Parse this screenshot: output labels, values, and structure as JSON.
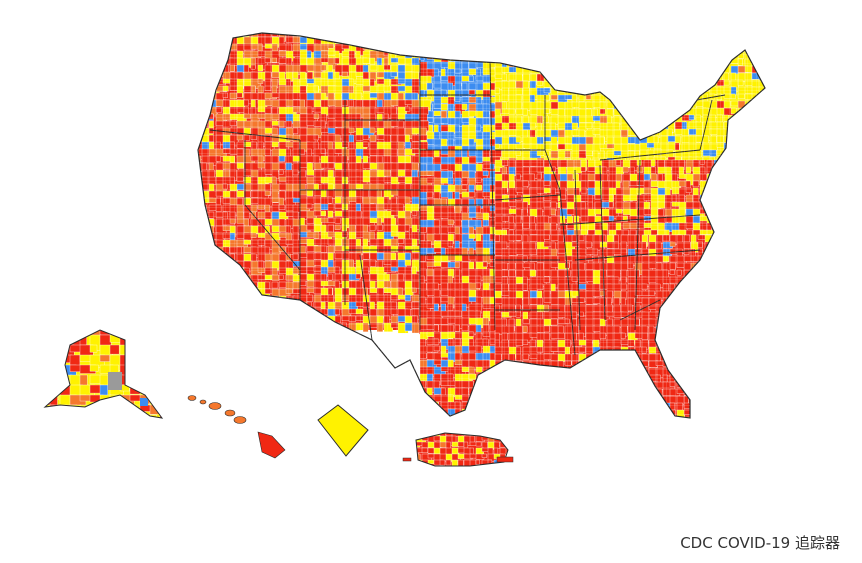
{
  "credit": "CDC COVID-19 追踪器",
  "colors": {
    "high": "#f02814",
    "substantial": "#f5782d",
    "moderate": "#fff200",
    "low": "#3c8cf0",
    "no_data": "#9a9a9a",
    "state_border": "#2b2b2b",
    "county_border": "#ffffff"
  },
  "map": {
    "regions": [
      "contiguous-us",
      "alaska",
      "hawaii",
      "district-of-columbia",
      "puerto-rico"
    ]
  }
}
